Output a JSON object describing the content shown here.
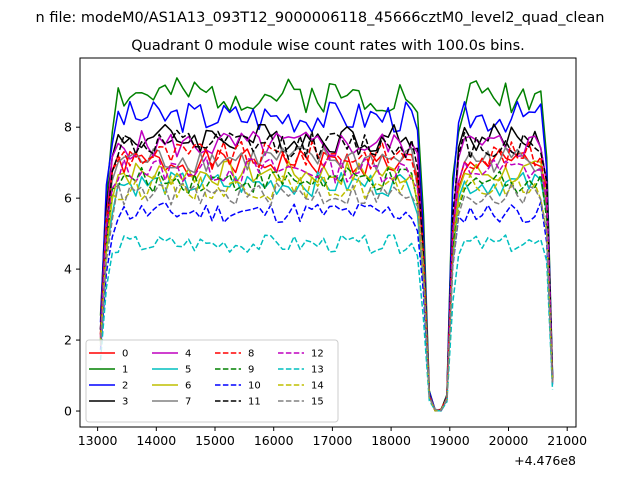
{
  "suptitle": "n file: modeM0/AS1A13_093T12_9000006118_45666cztM0_level2_quad_clean",
  "chart_data": {
    "type": "line",
    "title": "Quadrant 0 module wise count rates with 100.0s bins.",
    "xlabel": "",
    "ylabel": "",
    "x_offset_label": "+4.476e8",
    "xlim": [
      12700,
      21150
    ],
    "ylim": [
      -0.45,
      9.95
    ],
    "xticks": [
      13000,
      14000,
      15000,
      16000,
      17000,
      18000,
      19000,
      20000,
      21000
    ],
    "xtick_labels": [
      "13000",
      "14000",
      "15000",
      "16000",
      "17000",
      "18000",
      "19000",
      "20000",
      "21000"
    ],
    "yticks": [
      0,
      2,
      4,
      6,
      8
    ],
    "ytick_labels": [
      "0",
      "2",
      "4",
      "6",
      "8"
    ],
    "x": {
      "start": 13050,
      "step": 100,
      "count": 78
    },
    "segment_envelope": [
      0.3,
      0.72,
      0.92,
      1,
      1,
      1,
      1,
      1,
      1,
      1,
      1,
      1,
      1,
      1,
      1,
      1,
      1,
      1,
      1,
      1,
      1,
      1,
      1,
      1,
      1,
      1,
      1,
      1,
      1,
      1,
      1,
      1,
      1,
      1,
      1,
      1,
      1,
      1,
      1,
      1,
      1,
      1,
      1,
      1,
      1,
      1,
      1,
      1,
      1,
      1,
      1,
      1,
      1,
      1,
      0.92,
      0.6,
      0.06,
      0.0,
      0.0,
      0.05,
      0.7,
      0.93,
      1,
      1,
      1,
      1,
      1,
      1,
      1,
      1,
      1,
      1,
      1,
      1,
      1,
      1,
      0.85,
      0.12
    ],
    "grid": false,
    "legend_position": "lower-left",
    "legend_columns": 4,
    "series": [
      {
        "name": "0",
        "color": "#ff0000",
        "dash": "solid",
        "level": 7.0
      },
      {
        "name": "1",
        "color": "#008000",
        "dash": "solid",
        "level": 8.9
      },
      {
        "name": "2",
        "color": "#0000ff",
        "dash": "solid",
        "level": 8.3
      },
      {
        "name": "3",
        "color": "#000000",
        "dash": "solid",
        "level": 7.7
      },
      {
        "name": "4",
        "color": "#bf00bf",
        "dash": "solid",
        "level": 7.5
      },
      {
        "name": "5",
        "color": "#00bfbf",
        "dash": "solid",
        "level": 6.4
      },
      {
        "name": "6",
        "color": "#bfbf00",
        "dash": "solid",
        "level": 6.7
      },
      {
        "name": "7",
        "color": "#808080",
        "dash": "solid",
        "level": 7.1
      },
      {
        "name": "8",
        "color": "#ff0000",
        "dash": "dashed",
        "level": 7.2
      },
      {
        "name": "9",
        "color": "#008000",
        "dash": "dashed",
        "level": 6.5
      },
      {
        "name": "10",
        "color": "#0000ff",
        "dash": "dashed",
        "level": 5.6
      },
      {
        "name": "11",
        "color": "#000000",
        "dash": "dashed",
        "level": 7.5
      },
      {
        "name": "12",
        "color": "#bf00bf",
        "dash": "dashed",
        "level": 6.8
      },
      {
        "name": "13",
        "color": "#00bfbf",
        "dash": "dashed",
        "level": 4.7
      },
      {
        "name": "14",
        "color": "#bfbf00",
        "dash": "dashed",
        "level": 6.3
      },
      {
        "name": "15",
        "color": "#808080",
        "dash": "dashed",
        "level": 6.1
      }
    ]
  }
}
